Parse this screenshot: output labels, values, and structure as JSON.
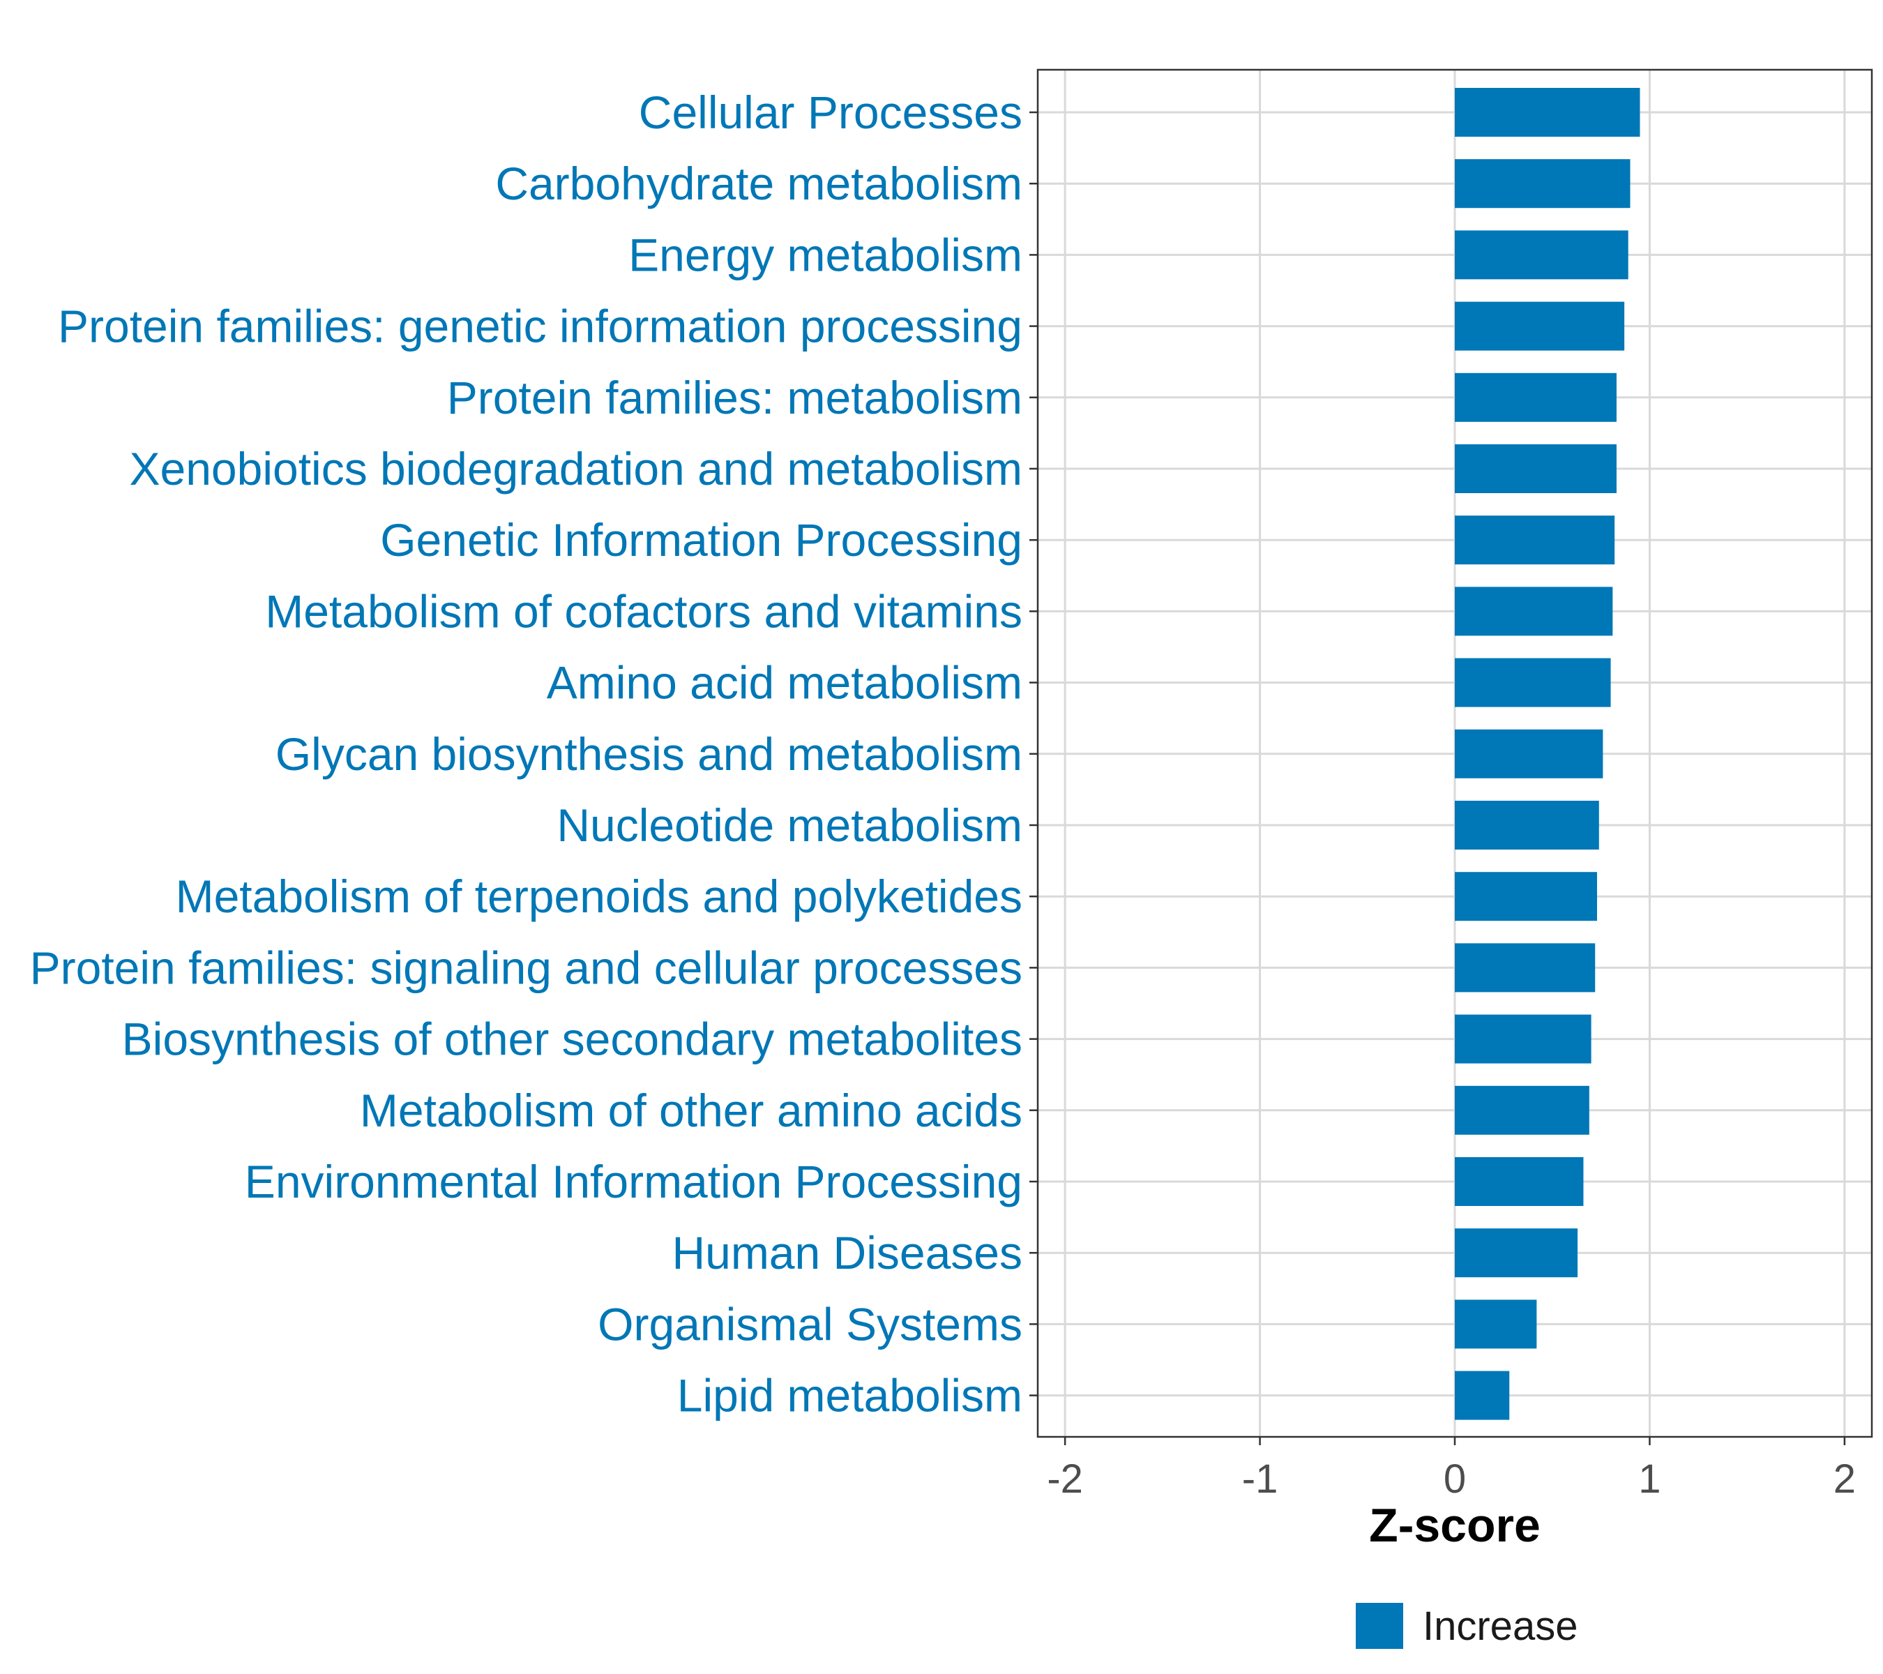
{
  "colors": {
    "bar": "#0077B6",
    "category_label": "#0077B6",
    "grid": "#D9D9D9",
    "panel_border": "#333333",
    "tick_label": "#4D4D4D",
    "axis_title": "#000000",
    "legend_text": "#1A1A1A"
  },
  "chart_data": {
    "type": "bar",
    "orientation": "horizontal",
    "categories": [
      "Cellular Processes",
      "Carbohydrate metabolism",
      "Energy metabolism",
      "Protein families: genetic information processing",
      "Protein families: metabolism",
      "Xenobiotics biodegradation and metabolism",
      "Genetic Information Processing",
      "Metabolism of cofactors and vitamins",
      "Amino acid metabolism",
      "Glycan biosynthesis and metabolism",
      "Nucleotide metabolism",
      "Metabolism of terpenoids and polyketides",
      "Protein families: signaling and cellular processes",
      "Biosynthesis of other secondary metabolites",
      "Metabolism of other amino acids",
      "Environmental Information Processing",
      "Human Diseases",
      "Organismal Systems",
      "Lipid metabolism"
    ],
    "series": [
      {
        "name": "Increase",
        "values": [
          0.95,
          0.9,
          0.89,
          0.87,
          0.83,
          0.83,
          0.82,
          0.81,
          0.8,
          0.76,
          0.74,
          0.73,
          0.72,
          0.7,
          0.69,
          0.66,
          0.63,
          0.42,
          0.28
        ]
      }
    ],
    "xlabel": "Z-score",
    "ylabel": "",
    "xlim": [
      -2.14,
      2.14
    ],
    "x_ticks": [
      "-2",
      "-1",
      "0",
      "1",
      "2"
    ],
    "grid": true,
    "legend_position": "bottom"
  }
}
